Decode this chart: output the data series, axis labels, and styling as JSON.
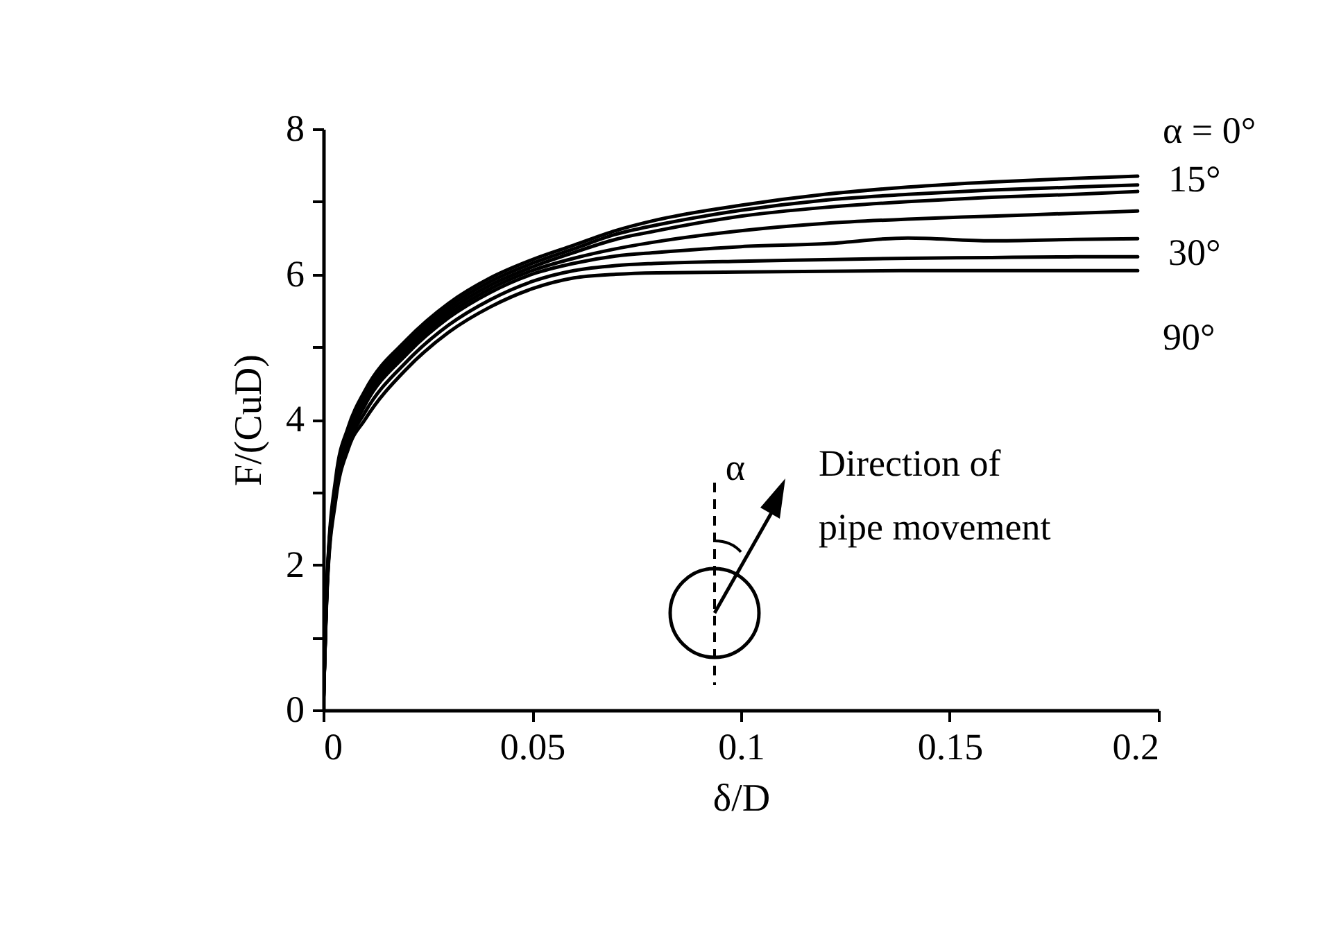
{
  "chart_data": {
    "type": "line",
    "xlabel": "δ/D",
    "ylabel": "F/(CuD)",
    "xlim": [
      0,
      0.2
    ],
    "ylim": [
      0,
      8
    ],
    "xticks": [
      0,
      0.05,
      0.1,
      0.15,
      0.2
    ],
    "yticks": [
      0,
      {
        "value": 1,
        "label": null
      },
      2,
      {
        "value": 3,
        "label": null
      },
      4,
      {
        "value": 5,
        "label": null
      },
      6,
      {
        "value": 7,
        "label": null
      },
      8
    ],
    "grid": false,
    "legend": false,
    "marker": "none",
    "line_style": "solid",
    "x": [
      0,
      0.001,
      0.003,
      0.006,
      0.01,
      0.02,
      0.03,
      0.04,
      0.05,
      0.06,
      0.07,
      0.08,
      0.1,
      0.12,
      0.14,
      0.16,
      0.18,
      0.195
    ],
    "series": [
      {
        "color": "#000000",
        "values": [
          0,
          1.9,
          3.2,
          3.9,
          4.4,
          5.1,
          5.6,
          5.95,
          6.2,
          6.4,
          6.6,
          6.75,
          6.95,
          7.1,
          7.2,
          7.27,
          7.32,
          7.35
        ]
      },
      {
        "color": "#000000",
        "values": [
          0,
          1.9,
          3.1,
          3.85,
          4.35,
          5.05,
          5.55,
          5.9,
          6.15,
          6.35,
          6.55,
          6.68,
          6.88,
          7.02,
          7.1,
          7.16,
          7.2,
          7.23
        ]
      },
      {
        "color": "#000000",
        "values": [
          0,
          1.85,
          3.1,
          3.8,
          4.3,
          5.0,
          5.5,
          5.85,
          6.1,
          6.3,
          6.48,
          6.6,
          6.8,
          6.92,
          7.0,
          7.06,
          7.1,
          7.14
        ]
      },
      {
        "color": "#000000",
        "values": [
          0,
          1.85,
          3.05,
          3.75,
          4.25,
          4.95,
          5.45,
          5.8,
          6.05,
          6.22,
          6.35,
          6.45,
          6.6,
          6.7,
          6.76,
          6.8,
          6.84,
          6.87
        ]
      },
      {
        "color": "#000000",
        "values": [
          0,
          1.8,
          3.0,
          3.7,
          4.2,
          4.9,
          5.4,
          5.75,
          6.0,
          6.15,
          6.25,
          6.3,
          6.38,
          6.42,
          6.5,
          6.46,
          6.48,
          6.49
        ]
      },
      {
        "color": "#000000",
        "values": [
          0,
          1.8,
          2.95,
          3.65,
          4.1,
          4.8,
          5.3,
          5.65,
          5.9,
          6.05,
          6.12,
          6.15,
          6.18,
          6.2,
          6.22,
          6.23,
          6.24,
          6.24
        ]
      },
      {
        "color": "#000000",
        "values": [
          0,
          1.75,
          2.9,
          3.6,
          4.0,
          4.7,
          5.2,
          5.55,
          5.8,
          5.95,
          6.0,
          6.02,
          6.03,
          6.04,
          6.05,
          6.05,
          6.05,
          6.05
        ]
      }
    ],
    "annotations": [
      "α = 0°",
      "15°",
      "30°",
      "90°",
      "α",
      "Direction of pipe movement"
    ]
  }
}
